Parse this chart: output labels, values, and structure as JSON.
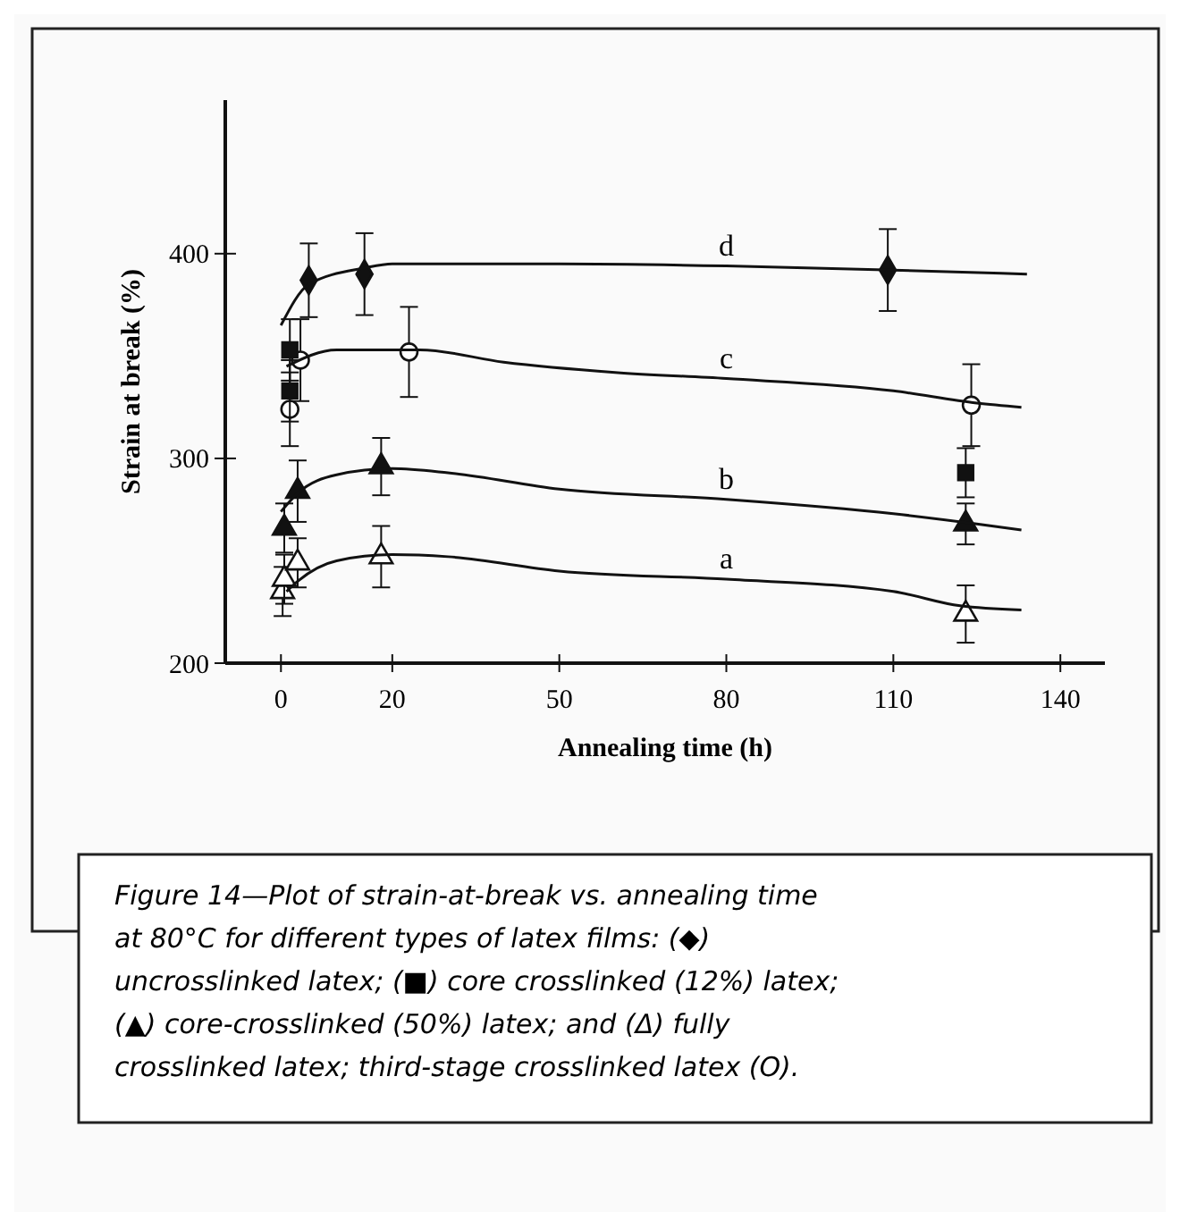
{
  "chart_data": {
    "type": "scatter",
    "xlabel": "Annealing time   (h)",
    "ylabel": "Strain at break  (%)",
    "xlim": [
      -10,
      148
    ],
    "ylim": [
      200,
      475
    ],
    "xticks": [
      0,
      20,
      50,
      80,
      110,
      140
    ],
    "yticks": [
      200,
      300,
      400
    ],
    "grid": false,
    "series": [
      {
        "marker": "diamond",
        "color": "#111111",
        "x": [
          5,
          15,
          109
        ],
        "values": [
          387,
          390,
          392
        ],
        "errors": [
          18,
          20,
          20
        ]
      },
      {
        "marker": "circle",
        "color": "#ffffff",
        "x": [
          1.6,
          3.5,
          23,
          124
        ],
        "values": [
          324,
          348,
          352,
          326
        ],
        "errors": [
          18,
          20,
          22,
          20
        ]
      },
      {
        "marker": "square",
        "color": "#111111",
        "x": [
          1.6,
          1.6,
          123
        ],
        "values": [
          353,
          333,
          293
        ],
        "errors": [
          15,
          15,
          12
        ]
      },
      {
        "marker": "triangle",
        "color": "#111111",
        "x": [
          0.6,
          3,
          18,
          123
        ],
        "values": [
          266,
          284,
          296,
          268
        ],
        "errors": [
          12,
          15,
          14,
          10
        ]
      },
      {
        "marker": "triangle",
        "color": "#ffffff",
        "x": [
          0.3,
          0.6,
          3,
          18,
          123
        ],
        "values": [
          235,
          241,
          249,
          252,
          224
        ],
        "errors": [
          12,
          12,
          12,
          15,
          14
        ]
      },
      {
        "type": "line",
        "name": "d",
        "marker": "none",
        "color": "#111111",
        "x": [
          0,
          5,
          15,
          20,
          50,
          80,
          110,
          134
        ],
        "values": [
          365,
          385,
          393,
          395,
          395,
          394,
          392,
          390
        ]
      },
      {
        "type": "line",
        "name": "c",
        "marker": "none",
        "color": "#111111",
        "x": [
          1,
          10,
          25,
          40,
          60,
          80,
          110,
          125,
          133
        ],
        "values": [
          345,
          353,
          353,
          347,
          342,
          339,
          333,
          327,
          325
        ]
      },
      {
        "type": "line",
        "name": "b",
        "marker": "none",
        "color": "#111111",
        "x": [
          0,
          3,
          10,
          20,
          30,
          50,
          80,
          110,
          125,
          133
        ],
        "values": [
          274,
          283,
          292,
          295,
          293,
          285,
          280,
          273,
          268,
          265
        ]
      },
      {
        "type": "line",
        "name": "a",
        "marker": "none",
        "color": "#111111",
        "x": [
          1,
          3,
          10,
          20,
          30,
          50,
          80,
          110,
          122,
          133
        ],
        "values": [
          235,
          240,
          250,
          253,
          252,
          245,
          241,
          235,
          228,
          226
        ]
      }
    ],
    "annotations": [
      "Figure 14—Plot of strain-at-break vs. annealing time at 80°C for different types of latex films: (◆) uncrosslinked latex; (■) core crosslinked (12%) latex; (▲) core-crosslinked (50%) latex; and (Δ) fully crosslinked latex; third-stage crosslinked latex (O)."
    ]
  }
}
